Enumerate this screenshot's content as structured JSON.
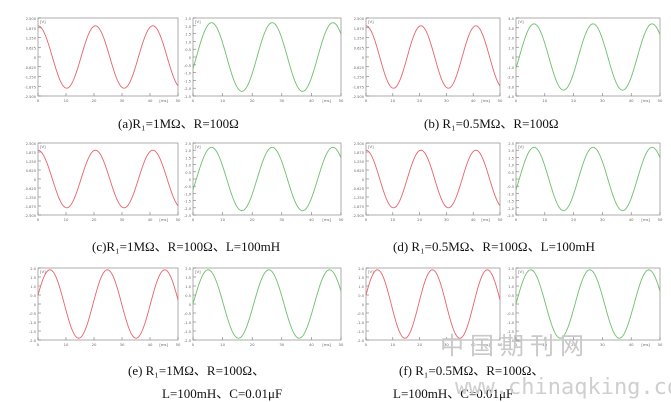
{
  "watermark": {
    "text_cn": "中国期刊网",
    "url": "www.chinaqking.com"
  },
  "captions": [
    {
      "line1": "(a)R₁=1MΩ、R=100Ω",
      "line2": ""
    },
    {
      "line1": "(b) R₁=0.5MΩ、R=100Ω",
      "line2": ""
    },
    {
      "line1": "(c)R₁=1MΩ、R=100Ω、L=100mH",
      "line2": ""
    },
    {
      "line1": "(d) R₁=0.5MΩ、R=100Ω、L=100mH",
      "line2": ""
    },
    {
      "line1": "(e) R₁=1MΩ、R=100Ω、",
      "line2": "L=100mH、C=0.01μF"
    },
    {
      "line1": "(f) R₁=0.5MΩ、R=100Ω、",
      "line2": "L=100mH、C=0.01μF"
    }
  ],
  "chart_data": [
    {
      "type": "line",
      "panel": "a-red",
      "color": "#e8636b",
      "xlabel": "[ms]",
      "ylabel": "[V]",
      "xlim": [
        0,
        50
      ],
      "ylim": [
        -2.5,
        2.5
      ],
      "x_ticks": [
        "0",
        "10",
        "20",
        "30",
        "40",
        "50"
      ],
      "y_ticks": [
        "2.500",
        "1.875",
        "1.250",
        "0.625",
        "0",
        "-0.625",
        "-1.250",
        "-1.875",
        "-2.500"
      ],
      "series": [
        {
          "amplitude": 2.0,
          "period_ms": 20.5,
          "phase_deg": 90
        }
      ]
    },
    {
      "type": "line",
      "panel": "a-green",
      "color": "#6cc06a",
      "xlabel": "[ms]",
      "ylabel": "[V]",
      "xlim": [
        0,
        50
      ],
      "ylim": [
        -2.5,
        2.5
      ],
      "x_ticks": [
        "0",
        "10",
        "20",
        "30",
        "40",
        "50"
      ],
      "y_ticks": [
        "2.5",
        "2.0",
        "1.5",
        "1.0",
        "0.5",
        "0",
        "-0.5",
        "-1.0",
        "-1.5",
        "-2.0",
        "-2.5"
      ],
      "series": [
        {
          "amplitude": 2.2,
          "period_ms": 20.5,
          "phase_deg": -20
        }
      ]
    },
    {
      "type": "line",
      "panel": "b-red",
      "color": "#e8636b",
      "xlabel": "[ms]",
      "ylabel": "[V]",
      "xlim": [
        0,
        50
      ],
      "ylim": [
        -2.5,
        2.5
      ],
      "x_ticks": [
        "0",
        "10",
        "20",
        "30",
        "40",
        "50"
      ],
      "y_ticks": [
        "2.500",
        "1.875",
        "1.250",
        "0.625",
        "0",
        "-0.625",
        "-1.250",
        "-1.875",
        "-2.500"
      ],
      "series": [
        {
          "amplitude": 2.0,
          "period_ms": 20.5,
          "phase_deg": 90
        }
      ]
    },
    {
      "type": "line",
      "panel": "b-green",
      "color": "#6cc06a",
      "xlabel": "[ms]",
      "ylabel": "[V]",
      "xlim": [
        0,
        50
      ],
      "ylim": [
        -4,
        4
      ],
      "x_ticks": [
        "0",
        "10",
        "20",
        "30",
        "40",
        "50"
      ],
      "y_ticks": [
        "4.0",
        "3.0",
        "2.0",
        "1.0",
        "0",
        "-1.0",
        "-2.0",
        "-3.0",
        "-4.0"
      ],
      "series": [
        {
          "amplitude": 3.4,
          "period_ms": 20.5,
          "phase_deg": -20
        }
      ]
    },
    {
      "type": "line",
      "panel": "c-red",
      "color": "#e8636b",
      "xlabel": "[ms]",
      "ylabel": "[V]",
      "xlim": [
        0,
        50
      ],
      "ylim": [
        -2.5,
        2.5
      ],
      "x_ticks": [
        "0",
        "10",
        "20",
        "30",
        "40",
        "50"
      ],
      "y_ticks": [
        "2.500",
        "1.875",
        "1.250",
        "0.625",
        "0",
        "-0.625",
        "-1.250",
        "-1.875",
        "-2.500"
      ],
      "series": [
        {
          "amplitude": 2.0,
          "period_ms": 20.5,
          "phase_deg": 90
        }
      ]
    },
    {
      "type": "line",
      "panel": "c-green",
      "color": "#6cc06a",
      "xlabel": "[ms]",
      "ylabel": "[V]",
      "xlim": [
        0,
        50
      ],
      "ylim": [
        -2.5,
        2.5
      ],
      "x_ticks": [
        "0",
        "10",
        "20",
        "30",
        "40",
        "50"
      ],
      "y_ticks": [
        "2.5",
        "2.0",
        "1.5",
        "1.0",
        "0.5",
        "0",
        "-0.5",
        "-1.0",
        "-1.5",
        "-2.0",
        "-2.5"
      ],
      "series": [
        {
          "amplitude": 2.2,
          "period_ms": 20.5,
          "phase_deg": -20
        }
      ]
    },
    {
      "type": "line",
      "panel": "d-red",
      "color": "#e8636b",
      "xlabel": "[ms]",
      "ylabel": "[V]",
      "xlim": [
        0,
        50
      ],
      "ylim": [
        -2.5,
        2.5
      ],
      "x_ticks": [
        "0",
        "10",
        "20",
        "30",
        "40",
        "50"
      ],
      "y_ticks": [
        "2.500",
        "1.875",
        "1.250",
        "0.625",
        "0",
        "-0.625",
        "-1.250",
        "-1.875",
        "-2.500"
      ],
      "series": [
        {
          "amplitude": 2.0,
          "period_ms": 20.5,
          "phase_deg": 90
        }
      ]
    },
    {
      "type": "line",
      "panel": "d-green",
      "color": "#6cc06a",
      "xlabel": "[ms]",
      "ylabel": "[V]",
      "xlim": [
        0,
        50
      ],
      "ylim": [
        -2.5,
        2.5
      ],
      "x_ticks": [
        "0",
        "10",
        "20",
        "30",
        "40",
        "50"
      ],
      "y_ticks": [
        "2.5",
        "2.0",
        "1.5",
        "1.0",
        "0.5",
        "0",
        "-0.5",
        "-1.0",
        "-1.5",
        "-2.0",
        "-2.5"
      ],
      "series": [
        {
          "amplitude": 2.2,
          "period_ms": 20.5,
          "phase_deg": -20
        }
      ]
    },
    {
      "type": "line",
      "panel": "e-red",
      "color": "#e8636b",
      "xlabel": "[ms]",
      "ylabel": "[V]",
      "xlim": [
        0,
        50
      ],
      "ylim": [
        -2.0,
        2.0
      ],
      "x_ticks": [
        "0",
        "10",
        "20",
        "30",
        "40",
        "50"
      ],
      "y_ticks": [
        "2.0",
        "1.5",
        "1.0",
        "0.5",
        "0",
        "-0.5",
        "-1.0",
        "-1.5",
        "-2.0"
      ],
      "series": [
        {
          "amplitude": 1.9,
          "period_ms": 20.5,
          "phase_deg": 15
        }
      ]
    },
    {
      "type": "line",
      "panel": "e-green",
      "color": "#6cc06a",
      "xlabel": "[ms]",
      "ylabel": "[V]",
      "xlim": [
        0,
        50
      ],
      "ylim": [
        -2.0,
        2.0
      ],
      "x_ticks": [
        "0",
        "10",
        "20",
        "30",
        "40",
        "50"
      ],
      "y_ticks": [
        "2.0",
        "1.5",
        "1.0",
        "0.5",
        "0",
        "-0.5",
        "-1.0",
        "-1.5",
        "-2.0"
      ],
      "series": [
        {
          "amplitude": 1.9,
          "period_ms": 20.5,
          "phase_deg": 0
        }
      ]
    },
    {
      "type": "line",
      "panel": "f-red",
      "color": "#e8636b",
      "xlabel": "[ms]",
      "ylabel": "[V]",
      "xlim": [
        0,
        50
      ],
      "ylim": [
        -2.0,
        2.0
      ],
      "x_ticks": [
        "0",
        "10",
        "20",
        "30",
        "40",
        "50"
      ],
      "y_ticks": [
        "2.0",
        "1.5",
        "1.0",
        "0.5",
        "0",
        "-0.5",
        "-1.0",
        "-1.5",
        "-2.0"
      ],
      "series": [
        {
          "amplitude": 1.9,
          "period_ms": 20.5,
          "phase_deg": 15
        }
      ]
    },
    {
      "type": "line",
      "panel": "f-green",
      "color": "#6cc06a",
      "xlabel": "[ms]",
      "ylabel": "[V]",
      "xlim": [
        0,
        50
      ],
      "ylim": [
        -2.0,
        2.0
      ],
      "x_ticks": [
        "0",
        "10",
        "20",
        "30",
        "40",
        "50"
      ],
      "y_ticks": [
        "2.0",
        "1.5",
        "1.0",
        "0.5",
        "0",
        "-0.5",
        "-1.0",
        "-1.5",
        "-2.0"
      ],
      "series": [
        {
          "amplitude": 1.9,
          "period_ms": 20.5,
          "phase_deg": 0
        }
      ]
    }
  ]
}
